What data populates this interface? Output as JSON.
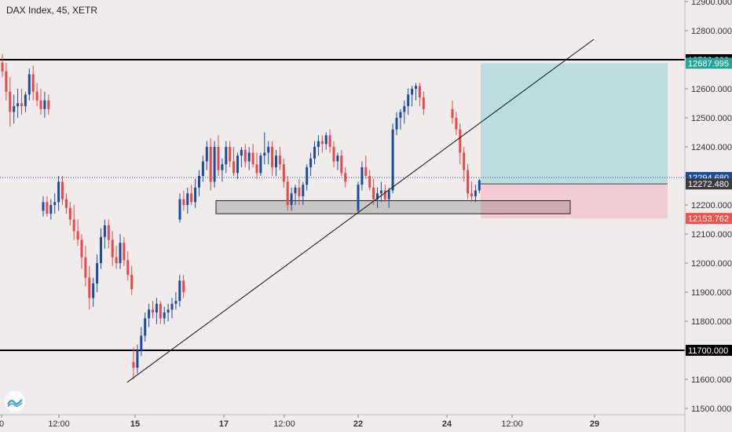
{
  "header": {
    "symbol_label": "DAX Index, 45, XETR"
  },
  "chart_data": {
    "type": "candlestick",
    "symbol": "DAX Index, 45, XETR",
    "ylim": [
      11470,
      12930
    ],
    "price_ticks": [
      "12900.000",
      "12800.000",
      "12600.000",
      "12500.000",
      "12400.000",
      "12300.000",
      "12200.000",
      "12100.000",
      "12000.000",
      "11900.000",
      "11800.000",
      "11700.000",
      "11600.000",
      "11500.000"
    ],
    "time_ticks": [
      "0",
      "12:00",
      "15",
      "17",
      "12:00",
      "22",
      "24",
      "12:00",
      "29"
    ],
    "price_markers": [
      {
        "label": "12700.000",
        "price": 12700,
        "color": "#000000",
        "text_color": "#ffffff"
      },
      {
        "label": "12687.995",
        "price": 12687.995,
        "color": "#26a69a",
        "text_color": "#ffffff"
      },
      {
        "label": "12294.680",
        "price": 12294.68,
        "color": "#1c4ca0",
        "text_color": "#ffffff"
      },
      {
        "label": "12272.480",
        "price": 12272.48,
        "color": "#3b3b3b",
        "text_color": "#ffffff"
      },
      {
        "label": "12153.762",
        "price": 12153.762,
        "color": "#ef5350",
        "text_color": "#ffffff"
      },
      {
        "label": "11700.000",
        "price": 11700,
        "color": "#000000",
        "text_color": "#ffffff"
      }
    ],
    "horizontal_levels": [
      12700,
      11700
    ],
    "current_price": 12294.68,
    "trendline": {
      "from": {
        "price": 11590
      },
      "to": {
        "price": 12770
      }
    },
    "zone_box": {
      "top": 12215,
      "bottom": 12170
    },
    "position": {
      "entry": 12272.48,
      "target": 12687.995,
      "stop": 12153.762
    },
    "colors": {
      "up": "#1c4ca0",
      "down": "#e84848",
      "grid_bg": "#f1ecec",
      "profit": "#bcdde0",
      "loss": "#f3cbd3"
    },
    "candles": [
      [
        12690,
        12720,
        12640,
        12660
      ],
      [
        12660,
        12690,
        12560,
        12590
      ],
      [
        12590,
        12640,
        12470,
        12520
      ],
      [
        12520,
        12580,
        12480,
        12540
      ],
      [
        12540,
        12600,
        12500,
        12550
      ],
      [
        12550,
        12600,
        12510,
        12540
      ],
      [
        12540,
        12590,
        12520,
        12580
      ],
      [
        12580,
        12670,
        12560,
        12650
      ],
      [
        12650,
        12680,
        12560,
        12590
      ],
      [
        12590,
        12620,
        12540,
        12560
      ],
      [
        12560,
        12600,
        12510,
        12530
      ],
      [
        12530,
        12590,
        12500,
        12560
      ],
      [
        12560,
        12580,
        12510,
        12530
      ],
      [
        12180,
        12230,
        12160,
        12210
      ],
      [
        12210,
        12230,
        12160,
        12170
      ],
      [
        12170,
        12220,
        12150,
        12200
      ],
      [
        12200,
        12240,
        12170,
        12210
      ],
      [
        12210,
        12300,
        12180,
        12280
      ],
      [
        12280,
        12300,
        12200,
        12220
      ],
      [
        12220,
        12240,
        12170,
        12190
      ],
      [
        12190,
        12210,
        12130,
        12150
      ],
      [
        12150,
        12200,
        12080,
        12110
      ],
      [
        12110,
        12150,
        12060,
        12080
      ],
      [
        12080,
        12100,
        11980,
        12020
      ],
      [
        12020,
        12060,
        11920,
        11950
      ],
      [
        11950,
        11990,
        11840,
        11880
      ],
      [
        11880,
        11950,
        11850,
        11930
      ],
      [
        11930,
        12030,
        11900,
        12000
      ],
      [
        12000,
        12120,
        11980,
        12090
      ],
      [
        12090,
        12150,
        12050,
        12130
      ],
      [
        12130,
        12150,
        12050,
        12080
      ],
      [
        12080,
        12110,
        11990,
        12020
      ],
      [
        12020,
        12060,
        11980,
        12000
      ],
      [
        12000,
        12100,
        11980,
        12070
      ],
      [
        12070,
        12090,
        11990,
        12010
      ],
      [
        12010,
        12040,
        11940,
        11960
      ],
      [
        11960,
        11990,
        11890,
        11910
      ],
      [
        11660,
        11710,
        11600,
        11640
      ],
      [
        11640,
        11720,
        11620,
        11700
      ],
      [
        11700,
        11780,
        11680,
        11750
      ],
      [
        11750,
        11830,
        11730,
        11810
      ],
      [
        11810,
        11860,
        11780,
        11840
      ],
      [
        11840,
        11870,
        11810,
        11830
      ],
      [
        11830,
        11880,
        11790,
        11860
      ],
      [
        11860,
        11870,
        11790,
        11810
      ],
      [
        11810,
        11850,
        11790,
        11830
      ],
      [
        11830,
        11860,
        11800,
        11840
      ],
      [
        11840,
        11880,
        11810,
        11860
      ],
      [
        11860,
        11900,
        11840,
        11870
      ],
      [
        11870,
        11960,
        11850,
        11940
      ],
      [
        11940,
        11960,
        11880,
        11900
      ],
      [
        12150,
        12240,
        12140,
        12220
      ],
      [
        12220,
        12250,
        12180,
        12200
      ],
      [
        12200,
        12260,
        12170,
        12240
      ],
      [
        12240,
        12270,
        12200,
        12210
      ],
      [
        12210,
        12290,
        12190,
        12260
      ],
      [
        12260,
        12320,
        12230,
        12300
      ],
      [
        12300,
        12370,
        12280,
        12350
      ],
      [
        12350,
        12420,
        12320,
        12400
      ],
      [
        12400,
        12430,
        12250,
        12280
      ],
      [
        12280,
        12420,
        12260,
        12400
      ],
      [
        12400,
        12440,
        12300,
        12320
      ],
      [
        12320,
        12360,
        12280,
        12340
      ],
      [
        12340,
        12420,
        12310,
        12400
      ],
      [
        12400,
        12420,
        12330,
        12350
      ],
      [
        12350,
        12400,
        12300,
        12310
      ],
      [
        12310,
        12380,
        12290,
        12370
      ],
      [
        12370,
        12400,
        12330,
        12390
      ],
      [
        12390,
        12410,
        12330,
        12350
      ],
      [
        12350,
        12400,
        12320,
        12380
      ],
      [
        12380,
        12410,
        12330,
        12340
      ],
      [
        12340,
        12380,
        12290,
        12310
      ],
      [
        12310,
        12380,
        12300,
        12370
      ],
      [
        12370,
        12450,
        12340,
        12380
      ],
      [
        12380,
        12420,
        12340,
        12400
      ],
      [
        12400,
        12420,
        12300,
        12330
      ],
      [
        12330,
        12390,
        12300,
        12370
      ],
      [
        12370,
        12400,
        12320,
        12340
      ],
      [
        12340,
        12360,
        12260,
        12280
      ],
      [
        12280,
        12300,
        12180,
        12200
      ],
      [
        12200,
        12260,
        12180,
        12240
      ],
      [
        12240,
        12270,
        12200,
        12260
      ],
      [
        12260,
        12290,
        12200,
        12230
      ],
      [
        12230,
        12280,
        12200,
        12270
      ],
      [
        12270,
        12340,
        12250,
        12330
      ],
      [
        12330,
        12380,
        12300,
        12360
      ],
      [
        12360,
        12420,
        12340,
        12400
      ],
      [
        12400,
        12440,
        12370,
        12420
      ],
      [
        12420,
        12440,
        12380,
        12410
      ],
      [
        12410,
        12450,
        12390,
        12440
      ],
      [
        12440,
        12460,
        12380,
        12400
      ],
      [
        12400,
        12420,
        12330,
        12350
      ],
      [
        12350,
        12380,
        12320,
        12370
      ],
      [
        12370,
        12390,
        12300,
        12310
      ],
      [
        12310,
        12330,
        12260,
        12280
      ],
      [
        12180,
        12280,
        12170,
        12270
      ],
      [
        12270,
        12350,
        12250,
        12330
      ],
      [
        12330,
        12370,
        12290,
        12300
      ],
      [
        12300,
        12320,
        12250,
        12260
      ],
      [
        12260,
        12290,
        12200,
        12220
      ],
      [
        12220,
        12260,
        12190,
        12240
      ],
      [
        12240,
        12280,
        12210,
        12250
      ],
      [
        12250,
        12270,
        12210,
        12220
      ],
      [
        12220,
        12260,
        12190,
        12250
      ],
      [
        12250,
        12480,
        12240,
        12460
      ],
      [
        12460,
        12520,
        12440,
        12500
      ],
      [
        12500,
        12530,
        12460,
        12520
      ],
      [
        12520,
        12560,
        12480,
        12540
      ],
      [
        12540,
        12600,
        12510,
        12580
      ],
      [
        12580,
        12610,
        12540,
        12600
      ],
      [
        12600,
        12620,
        12560,
        12610
      ],
      [
        12610,
        12620,
        12540,
        12570
      ],
      [
        12570,
        12590,
        12510,
        12530
      ],
      [
        12530,
        12560,
        12480,
        12500
      ],
      [
        12500,
        12520,
        12440,
        12460
      ],
      [
        12460,
        12480,
        12340,
        12380
      ],
      [
        12380,
        12400,
        12280,
        12320
      ],
      [
        12320,
        12340,
        12220,
        12240
      ],
      [
        12240,
        12280,
        12210,
        12230
      ],
      [
        12230,
        12270,
        12210,
        12250
      ],
      [
        12250,
        12290,
        12240,
        12285
      ]
    ]
  }
}
